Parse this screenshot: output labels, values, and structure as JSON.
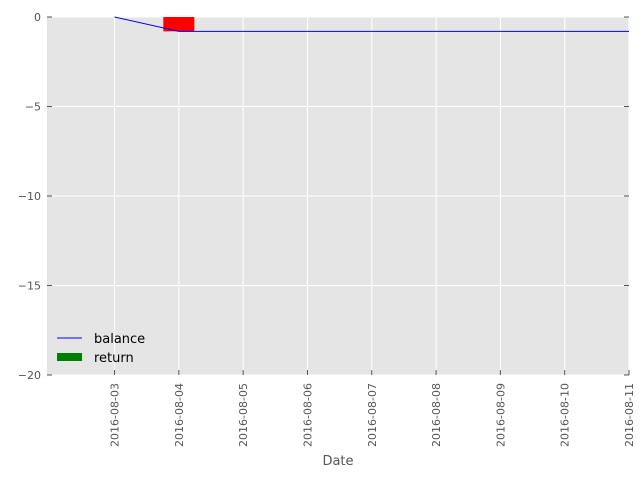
{
  "chart_data": {
    "type": "line",
    "title": "",
    "xlabel": "Date",
    "ylabel": "",
    "x_ticks": [
      "2016-08-03",
      "2016-08-04",
      "2016-08-05",
      "2016-08-06",
      "2016-08-07",
      "2016-08-08",
      "2016-08-09",
      "2016-08-10",
      "2016-08-11"
    ],
    "y_ticks": [
      "0",
      "−5",
      "−10",
      "−15",
      "−20"
    ],
    "ylim": [
      -20,
      0
    ],
    "xlim": [
      "2016-08-02",
      "2016-08-11"
    ],
    "grid": true,
    "legend_position": "lower-left",
    "series": [
      {
        "name": "balance",
        "type": "line",
        "color": "#0000ff",
        "points": [
          {
            "x": "2016-08-03",
            "y": 0.0
          },
          {
            "x": "2016-08-04",
            "y": -0.8
          },
          {
            "x": "2016-08-11",
            "y": -0.8
          }
        ]
      },
      {
        "name": "return",
        "type": "bar",
        "color": "#008000",
        "negative_color": "#ff0000",
        "points": [
          {
            "x": "2016-08-04",
            "y": -0.8
          }
        ]
      }
    ],
    "background_color": "#e5e5e5",
    "grid_color": "#ffffff"
  }
}
